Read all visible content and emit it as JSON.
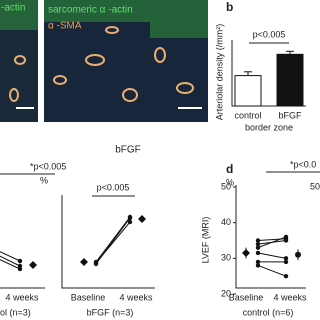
{
  "images": {
    "left_label": "-actin",
    "right_label_1": "sarcomeric α -actin",
    "right_label_2": "α -SMA",
    "caption": "bFGF"
  },
  "panel_b": {
    "letter": "b",
    "y_label": "Arteriolar density (/mm²)",
    "categories": [
      "control",
      "bFGF"
    ],
    "values": [
      40,
      68
    ],
    "errors": [
      5,
      4
    ],
    "ylim": [
      0,
      100
    ],
    "x_label": "border zone",
    "annotation": "p<0.005"
  },
  "panel_c_left": {
    "annotation": "*p<0.005",
    "x_label": "4 weeks",
    "group": "ol (n=3)",
    "baseline": [
      70,
      66,
      62
    ],
    "week4": [
      49,
      44,
      41
    ],
    "mean": 45,
    "error": 3,
    "ylim": [
      20,
      100
    ]
  },
  "panel_c": {
    "y_unit": "%",
    "annotation": "p<0.005",
    "x_labels": [
      "Baseline",
      "4 weeks"
    ],
    "group": "bFGF (n=3)",
    "series": [
      [
        48,
        93
      ],
      [
        46,
        92
      ],
      [
        47,
        88
      ]
    ],
    "means": [
      48,
      91
    ],
    "errors": [
      3,
      3
    ],
    "ylim": [
      20,
      100
    ]
  },
  "panel_d": {
    "letter": "d",
    "y_label": "LVEF (MRI)",
    "y_unit": "%",
    "annotation": "*p<0.0",
    "x_labels": [
      "Baseline",
      "4 weeks"
    ],
    "group": "control (n=6)",
    "yticks": [
      20,
      30,
      40,
      50
    ],
    "ylim": [
      20,
      50
    ],
    "series": [
      [
        35,
        35.5
      ],
      [
        34,
        35
      ],
      [
        33,
        36
      ],
      [
        31.5,
        30
      ],
      [
        29,
        29
      ],
      [
        28,
        25
      ]
    ],
    "means": [
      31.5,
      31
    ],
    "errors": [
      1.5,
      1.5
    ],
    "edge_tick": "50"
  }
}
